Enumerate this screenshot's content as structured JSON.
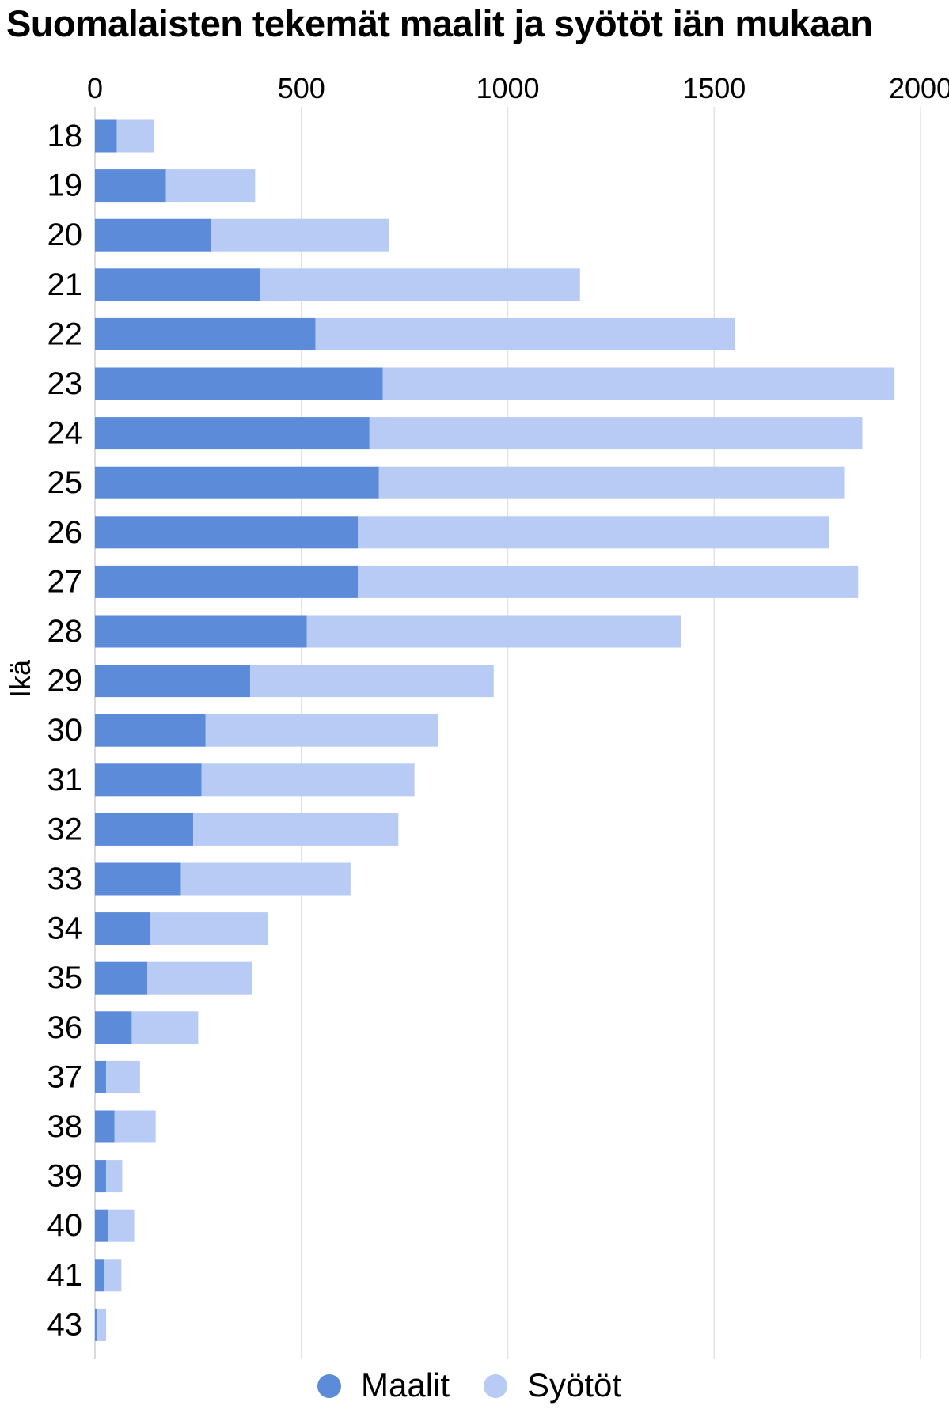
{
  "chart_data": {
    "type": "bar",
    "orientation": "horizontal",
    "stacked": true,
    "title": "Suomalaisten tekemät maalit ja syötöt iän mukaan",
    "xlabel": "",
    "ylabel": "Ikä",
    "xlim": [
      0,
      2000
    ],
    "xticks": [
      "0",
      "500",
      "1000",
      "1500",
      "2000"
    ],
    "xtick_values": [
      0,
      500,
      1000,
      1500,
      2000
    ],
    "grid": true,
    "legend_position": "bottom",
    "categories": [
      "18",
      "19",
      "20",
      "21",
      "22",
      "23",
      "24",
      "25",
      "26",
      "27",
      "28",
      "29",
      "30",
      "31",
      "32",
      "33",
      "34",
      "35",
      "36",
      "37",
      "38",
      "39",
      "40",
      "41",
      "43"
    ],
    "series": [
      {
        "name": "Maalit",
        "color": "#5b8bd9",
        "values": [
          53,
          172,
          280,
          400,
          534,
          697,
          665,
          688,
          637,
          637,
          513,
          376,
          268,
          258,
          238,
          208,
          133,
          127,
          89,
          27,
          47,
          27,
          32,
          22,
          6
        ]
      },
      {
        "name": "Syötöt",
        "color": "#b8cbf4",
        "values": [
          89,
          216,
          432,
          775,
          1016,
          1240,
          1194,
          1127,
          1141,
          1212,
          907,
          590,
          563,
          516,
          497,
          411,
          287,
          253,
          161,
          82,
          100,
          39,
          63,
          42,
          21
        ]
      }
    ]
  }
}
